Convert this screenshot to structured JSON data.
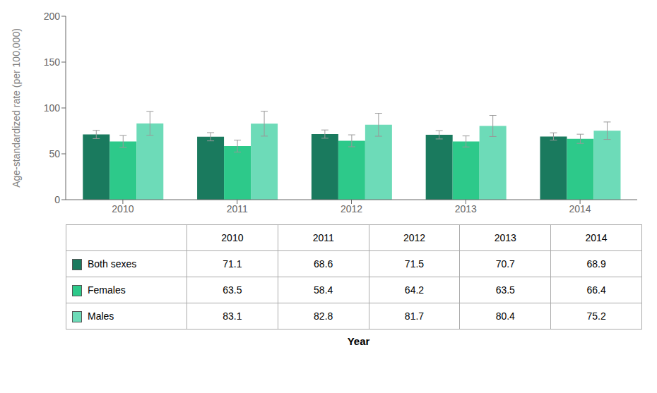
{
  "chart_data": {
    "type": "bar",
    "categories": [
      "2010",
      "2011",
      "2012",
      "2013",
      "2014"
    ],
    "series": [
      {
        "name": "Both sexes",
        "color": "#1a7a5e",
        "values": [
          71.1,
          68.6,
          71.5,
          70.7,
          68.9
        ],
        "errors": [
          4.5,
          4.5,
          4.5,
          4.5,
          4.0
        ]
      },
      {
        "name": "Females",
        "color": "#2dc98a",
        "values": [
          63.5,
          58.4,
          64.2,
          63.5,
          66.4
        ],
        "errors": [
          6.5,
          6.5,
          6.5,
          6.0,
          5.0
        ]
      },
      {
        "name": "Males",
        "color": "#6ddbb8",
        "values": [
          83.1,
          82.8,
          81.7,
          80.4,
          75.2
        ],
        "errors": [
          13.0,
          13.5,
          12.5,
          11.5,
          9.5
        ]
      }
    ],
    "ylabel": "Age-standardized rate (per 100,000)",
    "xlabel": "Year",
    "ylim": [
      0,
      200
    ],
    "yticks": [
      0,
      50,
      100,
      150,
      200
    ],
    "grid": false
  }
}
